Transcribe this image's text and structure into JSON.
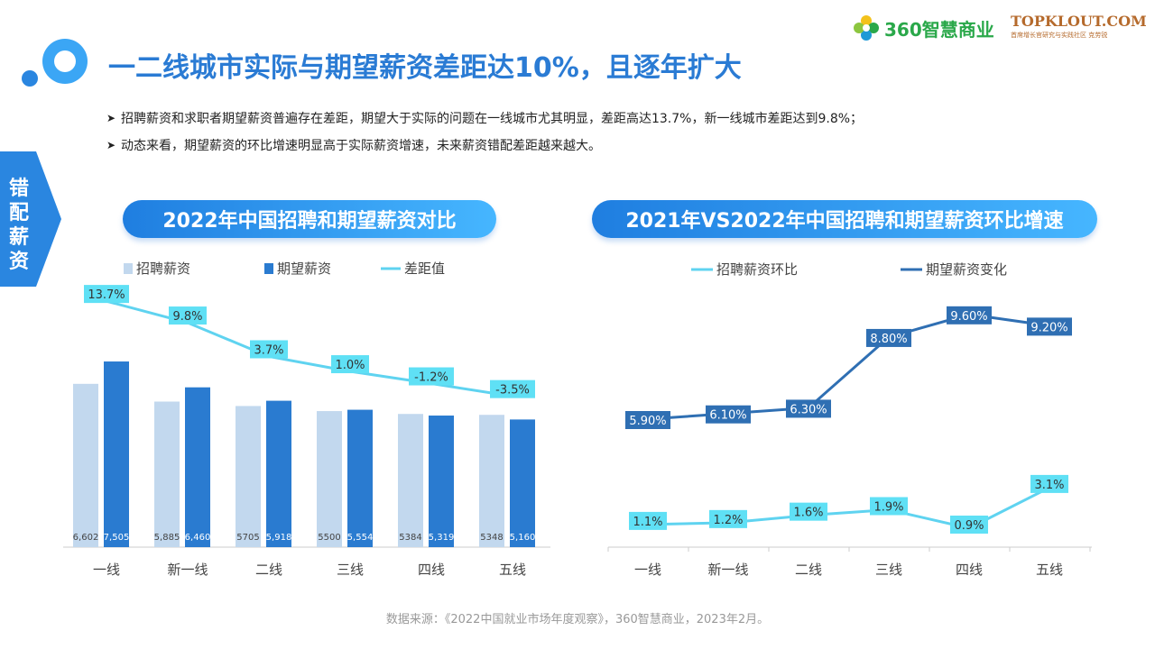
{
  "header": {
    "title": "一二线城市实际与期望薪资差距达10%，且逐年扩大",
    "brand_360": "360智慧商业",
    "brand_topklout": "TOPKLOUT.COM",
    "brand_topklout_sub": "首席增长官研究与实践社区 克劳锐"
  },
  "side_tab": {
    "label": "错配薪资"
  },
  "bullets": [
    "招聘薪资和求职者期望薪资普遍存在差距，期望大于实际的问题在一线城市尤其明显，差距高达13.7%，新一线城市差距达到9.8%；",
    "动态来看，期望薪资的环比增速明显高于实际薪资增速，未来薪资错配差距越来越大。"
  ],
  "colors": {
    "accent": "#2a7bd4",
    "recruit_bar": "#c2d8ee",
    "expect_bar": "#2a7bd0",
    "gap_line": "#5fd3f0",
    "label_box_light": "#5fe0f5",
    "line_dark": "#2f6fb3",
    "line_light": "#5fd3f0"
  },
  "source": "数据来源：《2022中国就业市场年度观察》，360智慧商业，2023年2月。",
  "chart_data": [
    {
      "type": "bar",
      "title": "2022年中国招聘和期望薪资对比",
      "categories": [
        "一线",
        "新一线",
        "二线",
        "三线",
        "四线",
        "五线"
      ],
      "series": [
        {
          "name": "招聘薪资",
          "kind": "bar",
          "values": [
            6602,
            5885,
            5705,
            5500,
            5384,
            5348
          ],
          "labels": [
            "6,602",
            "5,885",
            "5705",
            "5500",
            "5384",
            "5348"
          ]
        },
        {
          "name": "期望薪资",
          "kind": "bar",
          "values": [
            7505,
            6460,
            5918,
            5554,
            5319,
            5160
          ],
          "labels": [
            "7,505",
            "6,460",
            "5,918",
            "5,554",
            "5,319",
            "5,160"
          ]
        },
        {
          "name": "差距值",
          "kind": "line",
          "values": [
            13.7,
            9.8,
            3.7,
            1.0,
            -1.2,
            -3.5
          ],
          "labels": [
            "13.7%",
            "9.8%",
            "3.7%",
            "1.0%",
            "-1.2%",
            "-3.5%"
          ]
        }
      ],
      "ylim": [
        0,
        9000
      ],
      "grid": false,
      "legend": "top"
    },
    {
      "type": "line",
      "title": "2021年VS2022年中国招聘和期望薪资环比增速",
      "categories": [
        "一线",
        "新一线",
        "二线",
        "三线",
        "四线",
        "五线"
      ],
      "series": [
        {
          "name": "招聘薪资环比",
          "values": [
            1.1,
            1.2,
            1.6,
            1.9,
            0.9,
            3.1
          ],
          "labels": [
            "1.1%",
            "1.2%",
            "1.6%",
            "1.9%",
            "0.9%",
            "3.1%"
          ]
        },
        {
          "name": "期望薪资变化",
          "values": [
            5.9,
            6.1,
            6.3,
            8.8,
            9.6,
            9.2
          ],
          "labels": [
            "5.90%",
            "6.10%",
            "6.30%",
            "8.80%",
            "9.60%",
            "9.20%"
          ]
        }
      ],
      "grid": false,
      "legend": "top"
    }
  ]
}
